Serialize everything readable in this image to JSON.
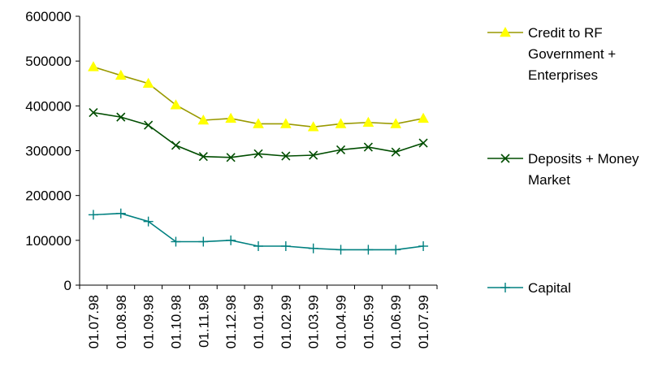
{
  "chart_data": {
    "type": "line",
    "categories": [
      "01.07.98",
      "01.08.98",
      "01.09.98",
      "01.10.98",
      "01.11.98",
      "01.12.98",
      "01.01.99",
      "01.02.99",
      "01.03.99",
      "01.04.99",
      "01.05.99",
      "01.06.99",
      "01.07.99"
    ],
    "ylim": [
      0,
      600000
    ],
    "yticks": [
      "0",
      "100000",
      "200000",
      "300000",
      "400000",
      "500000",
      "600000"
    ],
    "grid": false,
    "legend_position": "right",
    "series": [
      {
        "name_lines": [
          "Credit to RF",
          "Government +",
          "Enterprises"
        ],
        "color": "#999900",
        "marker": "triangle",
        "marker_color": "#ffff00",
        "values": [
          487000,
          468000,
          450000,
          402000,
          368000,
          372000,
          360000,
          360000,
          353000,
          360000,
          363000,
          360000,
          372000
        ]
      },
      {
        "name_lines": [
          "Deposits + Money",
          "Market"
        ],
        "color": "#004d00",
        "marker": "x",
        "marker_color": "#004d00",
        "values": [
          385000,
          375000,
          357000,
          312000,
          287000,
          285000,
          293000,
          288000,
          290000,
          302000,
          308000,
          297000,
          317000
        ]
      },
      {
        "name_lines": [
          "Capital"
        ],
        "color": "#008080",
        "marker": "plus",
        "marker_color": "#008080",
        "values": [
          157000,
          160000,
          142000,
          97000,
          97000,
          100000,
          87000,
          87000,
          82000,
          79000,
          79000,
          79000,
          87000
        ]
      }
    ]
  }
}
